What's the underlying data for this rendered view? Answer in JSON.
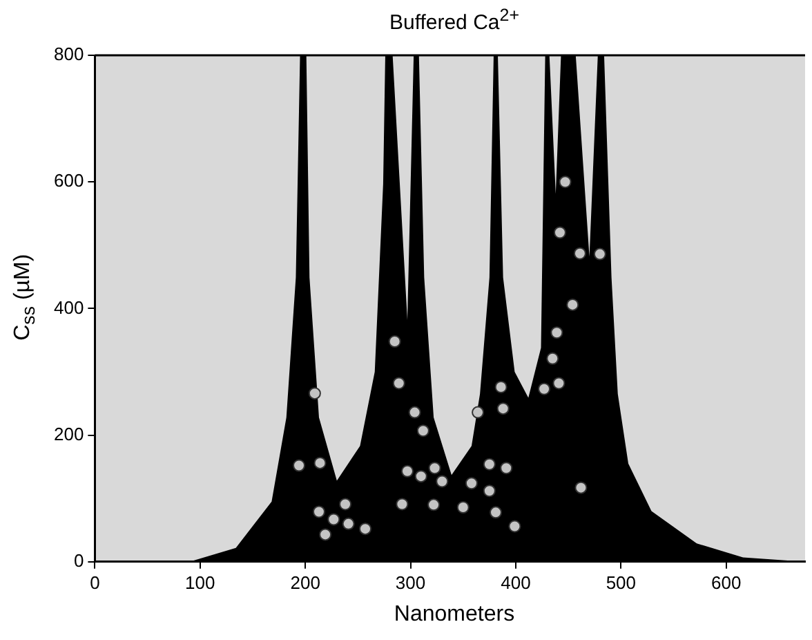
{
  "chart_data": {
    "type": "area",
    "title": "Buffered Ca$^{2+}$",
    "xlabel": "Nanometers",
    "ylabel": "C$_{ss}$ (µM)",
    "xlim": [
      0,
      675
    ],
    "xticks": [
      0,
      100,
      200,
      300,
      400,
      500,
      600
    ],
    "ylim": [
      0,
      800
    ],
    "yticks": [
      0,
      200,
      400,
      600,
      800
    ],
    "grid": false,
    "legend": false,
    "series": [
      {
        "color": "#000000",
        "x": [
          0,
          90,
          134,
          168,
          182,
          191,
          195,
          201,
          204,
          213,
          230,
          252,
          266,
          274,
          276,
          283,
          297,
          303,
          308,
          313,
          322,
          339,
          358,
          366,
          375,
          379,
          383,
          388,
          399,
          412,
          424,
          428,
          432,
          438,
          443,
          457,
          470,
          478,
          484,
          491,
          497,
          507,
          529,
          572,
          616,
          675
        ],
        "values": [
          0,
          0,
          22,
          95,
          228,
          449,
          800,
          800,
          449,
          228,
          128,
          183,
          300,
          597,
          800,
          800,
          382,
          800,
          800,
          449,
          228,
          137,
          183,
          265,
          449,
          800,
          800,
          449,
          300,
          259,
          338,
          800,
          800,
          581,
          800,
          800,
          482,
          800,
          800,
          449,
          265,
          155,
          80,
          29,
          7,
          0
        ]
      },
      {
        "type": "scatter",
        "marker": "circle",
        "color": "#c4c4c4",
        "x": [
          194,
          214,
          209,
          213,
          219,
          227,
          238,
          241,
          257,
          285,
          289,
          292,
          297,
          304,
          310,
          312,
          322,
          323,
          330,
          350,
          358,
          364,
          375,
          375,
          381,
          386,
          388,
          391,
          399,
          427,
          435,
          439,
          441,
          442,
          447,
          454,
          461,
          462,
          480
        ],
        "values": [
          152,
          156,
          266,
          79,
          43,
          67,
          91,
          60,
          52,
          348,
          282,
          91,
          143,
          236,
          135,
          207,
          90,
          148,
          127,
          86,
          124,
          236,
          154,
          112,
          78,
          276,
          242,
          148,
          56,
          273,
          321,
          362,
          282,
          520,
          600,
          406,
          487,
          117,
          486
        ]
      }
    ]
  }
}
